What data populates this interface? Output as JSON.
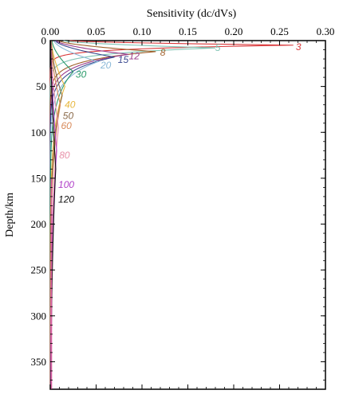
{
  "chart_data": {
    "type": "line",
    "title": "",
    "xlabel": "Sensitivity (dc/dVs)",
    "ylabel": "Depth/km",
    "xlim": [
      0,
      0.3
    ],
    "ylim": [
      0,
      380
    ],
    "y_inverted": true,
    "x_axis_position": "top",
    "grid": false,
    "legend": "inline curve labels",
    "x_ticks": [
      "0.00",
      "0.05",
      "0.10",
      "0.15",
      "0.20",
      "0.25",
      "0.30"
    ],
    "y_ticks": [
      "0",
      "50",
      "100",
      "150",
      "200",
      "250",
      "300",
      "350"
    ],
    "series": [
      {
        "name": "3",
        "color": "#d9383a",
        "peak_sensitivity": 0.265,
        "peak_depth": 5,
        "label_pos": [
          0.266,
          7
        ]
      },
      {
        "name": "5",
        "color": "#7fc4b4",
        "peak_sensitivity": 0.18,
        "peak_depth": 8,
        "label_pos": [
          0.178,
          8
        ]
      },
      {
        "name": "8",
        "color": "#a0602a",
        "peak_sensitivity": 0.115,
        "peak_depth": 12,
        "label_pos": [
          0.118,
          13
        ]
      },
      {
        "name": "12",
        "color": "#9a3a8a",
        "peak_sensitivity": 0.085,
        "peak_depth": 15,
        "label_pos": [
          0.084,
          17
        ]
      },
      {
        "name": "15",
        "color": "#3a4a90",
        "peak_sensitivity": 0.07,
        "peak_depth": 18,
        "label_pos": [
          0.072,
          21
        ]
      },
      {
        "name": "20",
        "color": "#8ab8d8",
        "peak_sensitivity": 0.052,
        "peak_depth": 23,
        "label_pos": [
          0.053,
          27
        ]
      },
      {
        "name": "30",
        "color": "#2a9a6a",
        "peak_sensitivity": 0.025,
        "peak_depth": 34,
        "label_pos": [
          0.026,
          37
        ]
      },
      {
        "name": "40",
        "color": "#e8b840",
        "peak_sensitivity": 0.016,
        "peak_depth": 50,
        "label_pos": [
          0.014,
          70
        ]
      },
      {
        "name": "50",
        "color": "#8a6a4a",
        "peak_sensitivity": 0.013,
        "peak_depth": 60,
        "label_pos": [
          0.012,
          82
        ]
      },
      {
        "name": "60",
        "color": "#d88a5a",
        "peak_sensitivity": 0.011,
        "peak_depth": 70,
        "label_pos": [
          0.01,
          93
        ]
      },
      {
        "name": "80",
        "color": "#e890a8",
        "peak_sensitivity": 0.009,
        "peak_depth": 95,
        "label_pos": [
          0.008,
          125
        ]
      },
      {
        "name": "100",
        "color": "#b040c8",
        "peak_sensitivity": 0.007,
        "peak_depth": 120,
        "label_pos": [
          0.007,
          157
        ]
      },
      {
        "name": "120",
        "color": "#111111",
        "peak_sensitivity": 0.006,
        "peak_depth": 140,
        "label_pos": [
          0.007,
          173
        ]
      }
    ]
  }
}
